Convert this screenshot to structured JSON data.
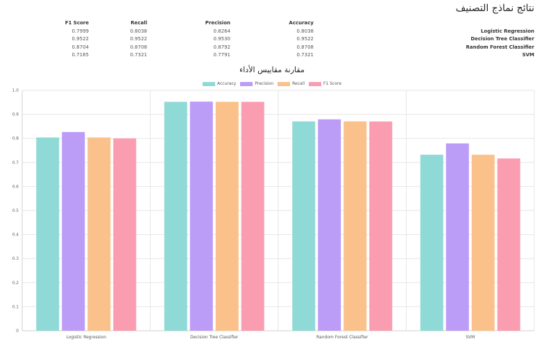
{
  "page": {
    "title": "نتائج نماذج التصنيف"
  },
  "table": {
    "headers": [
      "F1 Score",
      "Recall",
      "Precision",
      "Accuracy",
      ""
    ],
    "rows": [
      {
        "f1": "0.7999",
        "recall": "0.8038",
        "precision": "0.8264",
        "accuracy": "0.8038",
        "model": "Logistic Regression"
      },
      {
        "f1": "0.9522",
        "recall": "0.9522",
        "precision": "0.9530",
        "accuracy": "0.9522",
        "model": "Decision Tree Classifier"
      },
      {
        "f1": "0.8704",
        "recall": "0.8708",
        "precision": "0.8792",
        "accuracy": "0.8708",
        "model": "Random Forest Classifier"
      },
      {
        "f1": "0.7165",
        "recall": "0.7321",
        "precision": "0.7791",
        "accuracy": "0.7321",
        "model": "SVM"
      }
    ]
  },
  "chart_data": {
    "type": "bar",
    "title": "مقارنة مقاييس الأداء",
    "categories": [
      "Logistic Regression",
      "Decision Tree Classifier",
      "Random Forest Classifier",
      "SVM"
    ],
    "series": [
      {
        "name": "Accuracy",
        "color": "#8fd9d6",
        "values": [
          0.8038,
          0.9522,
          0.8708,
          0.7321
        ]
      },
      {
        "name": "Precision",
        "color": "#bb9cf6",
        "values": [
          0.8264,
          0.953,
          0.8792,
          0.7791
        ]
      },
      {
        "name": "Recall",
        "color": "#fac18a",
        "values": [
          0.8038,
          0.9522,
          0.8708,
          0.7321
        ]
      },
      {
        "name": "F1 Score",
        "color": "#fb9db0",
        "values": [
          0.7999,
          0.9522,
          0.8704,
          0.7165
        ]
      }
    ],
    "ylim": [
      0,
      1
    ],
    "yticks": [
      "0",
      "0.1",
      "0.2",
      "0.3",
      "0.4",
      "0.5",
      "0.6",
      "0.7",
      "0.8",
      "0.9",
      "1.0"
    ],
    "grid": true,
    "legend": "top-center"
  }
}
